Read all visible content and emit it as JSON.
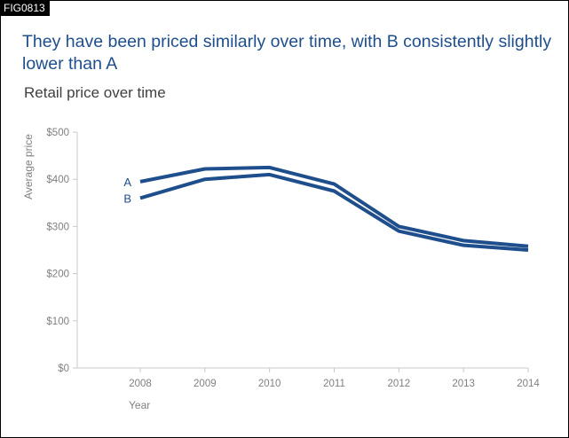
{
  "figure_id": "FIG0813",
  "headline": "They have been priced similarly over time, with B consistently slightly lower than A",
  "colors": {
    "series": "#1f4e8c",
    "axis": "#c8c8c8",
    "text_muted": "#808080"
  },
  "chart_data": {
    "type": "line",
    "title": "Retail price over time",
    "xlabel": "Year",
    "ylabel": "Average price",
    "categories": [
      "2008",
      "2009",
      "2010",
      "2011",
      "2012",
      "2013",
      "2014"
    ],
    "ylim": [
      0,
      500
    ],
    "yticks": [
      0,
      100,
      200,
      300,
      400,
      500
    ],
    "ytick_labels": [
      "$0",
      "$100",
      "$200",
      "$300",
      "$400",
      "$500"
    ],
    "grid": false,
    "series": [
      {
        "name": "A",
        "values": [
          395,
          422,
          425,
          390,
          300,
          270,
          258
        ]
      },
      {
        "name": "B",
        "values": [
          360,
          400,
          410,
          375,
          290,
          260,
          250
        ]
      }
    ]
  }
}
